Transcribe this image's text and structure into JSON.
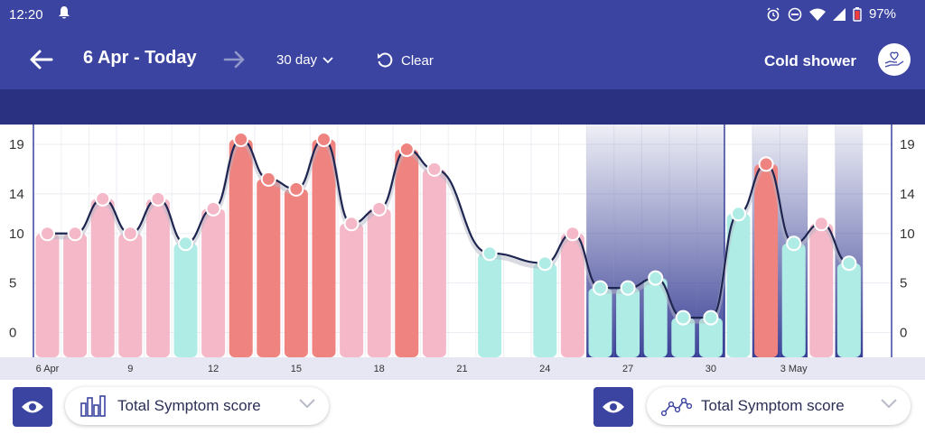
{
  "status": {
    "time": "12:20",
    "battery": "97%"
  },
  "header": {
    "date_range": "6 Apr - Today",
    "period": "30 day",
    "clear_label": "Clear",
    "habit_label": "Cold shower"
  },
  "controls": {
    "left_selector_label": "Total Symptom score",
    "right_selector_label": "Total Symptom score"
  },
  "colors": {
    "header_bg": "#3b44a0",
    "band_bg": "#2a3180",
    "pink": "#f5b8c8",
    "red": "#ee837f",
    "teal": "#b0ece6",
    "line": "#1d2550"
  },
  "chart_data": {
    "type": "bar",
    "x_tick_labels": [
      "6 Apr",
      "9",
      "12",
      "15",
      "18",
      "21",
      "24",
      "27",
      "30",
      "3 May"
    ],
    "x_tick_index": [
      0,
      3,
      6,
      9,
      12,
      15,
      18,
      21,
      24,
      27
    ],
    "y_ticks": [
      0,
      5,
      10,
      14,
      19
    ],
    "ylim": [
      -2.5,
      21
    ],
    "bars": [
      {
        "day": 0,
        "value": 10,
        "color": "pink"
      },
      {
        "day": 1,
        "value": 10,
        "color": "pink"
      },
      {
        "day": 2,
        "value": 13.5,
        "color": "pink"
      },
      {
        "day": 3,
        "value": 10,
        "color": "pink"
      },
      {
        "day": 4,
        "value": 13.5,
        "color": "pink"
      },
      {
        "day": 5,
        "value": 9,
        "color": "teal"
      },
      {
        "day": 6,
        "value": 12.5,
        "color": "pink"
      },
      {
        "day": 7,
        "value": 19.5,
        "color": "red"
      },
      {
        "day": 8,
        "value": 15.5,
        "color": "red"
      },
      {
        "day": 9,
        "value": 14.5,
        "color": "red"
      },
      {
        "day": 10,
        "value": 19.5,
        "color": "red"
      },
      {
        "day": 11,
        "value": 11,
        "color": "pink"
      },
      {
        "day": 12,
        "value": 12.5,
        "color": "pink"
      },
      {
        "day": 13,
        "value": 18.5,
        "color": "red"
      },
      {
        "day": 14,
        "value": 16.5,
        "color": "pink"
      },
      {
        "day": 16,
        "value": 8,
        "color": "teal"
      },
      {
        "day": 18,
        "value": 7,
        "color": "teal"
      },
      {
        "day": 19,
        "value": 10,
        "color": "pink"
      },
      {
        "day": 20,
        "value": 4.5,
        "color": "teal"
      },
      {
        "day": 21,
        "value": 4.5,
        "color": "teal"
      },
      {
        "day": 22,
        "value": 5.5,
        "color": "teal"
      },
      {
        "day": 23,
        "value": 1.5,
        "color": "teal"
      },
      {
        "day": 24,
        "value": 1.5,
        "color": "teal"
      },
      {
        "day": 25,
        "value": 12,
        "color": "teal"
      },
      {
        "day": 26,
        "value": 17,
        "color": "red"
      },
      {
        "day": 27,
        "value": 9,
        "color": "teal"
      },
      {
        "day": 28,
        "value": 11,
        "color": "pink"
      },
      {
        "day": 29,
        "value": 7,
        "color": "teal"
      }
    ],
    "line_series": [
      [
        0,
        10
      ],
      [
        1,
        10
      ],
      [
        2,
        13.5
      ],
      [
        3,
        10
      ],
      [
        4,
        13.5
      ],
      [
        5,
        9
      ],
      [
        6,
        12.5
      ],
      [
        7,
        19.5
      ],
      [
        8,
        15.5
      ],
      [
        9,
        14.5
      ],
      [
        10,
        19.5
      ],
      [
        11,
        11
      ],
      [
        12,
        12.5
      ],
      [
        13,
        18.5
      ],
      [
        14,
        16.5
      ],
      [
        16,
        8
      ],
      [
        18,
        7
      ],
      [
        19,
        10
      ],
      [
        20,
        4.5
      ],
      [
        21,
        4.5
      ],
      [
        22,
        5.5
      ],
      [
        23,
        1.5
      ],
      [
        24,
        1.5
      ],
      [
        25,
        12
      ],
      [
        26,
        17
      ],
      [
        27,
        9
      ],
      [
        28,
        11
      ],
      [
        29,
        7
      ]
    ],
    "shaded_days": [
      20,
      21,
      22,
      23,
      24,
      26,
      27,
      29
    ],
    "grid": true
  }
}
